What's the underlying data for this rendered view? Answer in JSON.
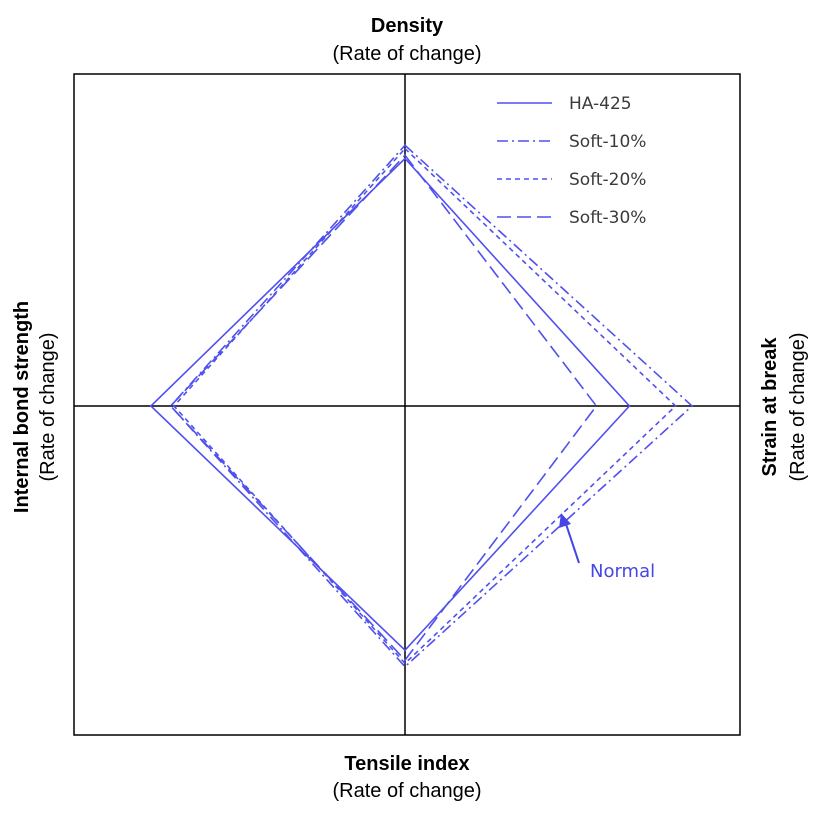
{
  "chart_data": {
    "type": "radar",
    "axes": [
      {
        "key": "top",
        "title": "Density",
        "subtitle": "(Rate of change)"
      },
      {
        "key": "right",
        "title": "Strain at break",
        "subtitle": "(Rate of change)"
      },
      {
        "key": "bottom",
        "title": "Tensile index",
        "subtitle": "(Rate of change)"
      },
      {
        "key": "left",
        "title": "Internal bond strength",
        "subtitle": "(Rate of change)"
      }
    ],
    "range": [
      0,
      1
    ],
    "grid": false,
    "legend_position": "top-right",
    "series": [
      {
        "name": "HA-425",
        "dash": "solid",
        "values": {
          "top": 0.75,
          "right": 0.68,
          "bottom": 0.74,
          "left": 0.77
        }
      },
      {
        "name": "Soft-10%",
        "dash": "dashdot",
        "values": {
          "top": 0.79,
          "right": 0.87,
          "bottom": 0.79,
          "left": 0.71
        }
      },
      {
        "name": "Soft-20%",
        "dash": "dotted",
        "values": {
          "top": 0.78,
          "right": 0.82,
          "bottom": 0.78,
          "left": 0.7
        }
      },
      {
        "name": "Soft-30%",
        "dash": "dashed",
        "values": {
          "top": 0.76,
          "right": 0.58,
          "bottom": 0.77,
          "left": 0.71
        }
      }
    ],
    "annotation": {
      "text": "Normal"
    },
    "line_color": "#5050ee",
    "annotation_color": "#4646e6"
  }
}
